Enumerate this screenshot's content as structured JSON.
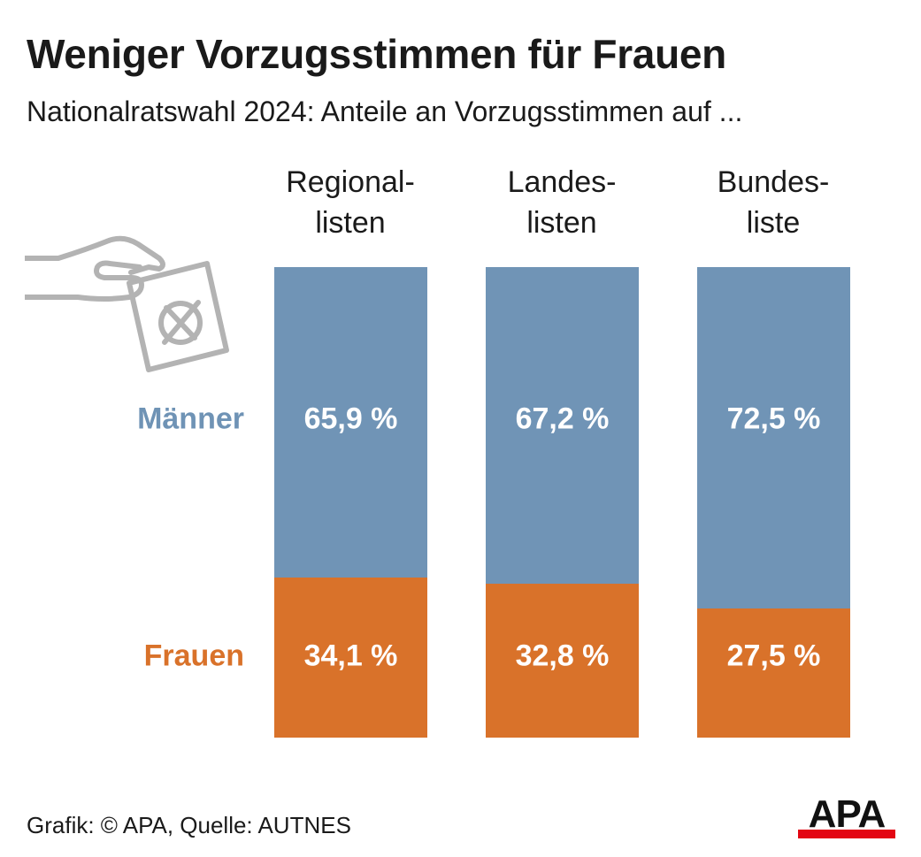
{
  "title": "Weniger Vorzugsstimmen für Frauen",
  "subtitle": "Nationalratswahl 2024: Anteile an Vorzugsstimmen auf ...",
  "columns": [
    {
      "line1": "Regional-",
      "line2": "listen"
    },
    {
      "line1": "Landes-",
      "line2": "listen"
    },
    {
      "line1": "Bundes-",
      "line2": "liste"
    }
  ],
  "row_labels": {
    "men": "Männer",
    "women": "Frauen"
  },
  "footer": "Grafik: © APA, Quelle: AUTNES",
  "logo": {
    "text": "APA"
  },
  "colors": {
    "men": "#7094b6",
    "women": "#d9722a",
    "men_label": "#6f93b5",
    "women_label": "#d9722a",
    "logo_bar": "#e30613",
    "icon": "#b3b3b3"
  },
  "chart_data": {
    "type": "bar",
    "stacked": true,
    "normalized": true,
    "title": "Weniger Vorzugsstimmen für Frauen",
    "subtitle": "Nationalratswahl 2024: Anteile an Vorzugsstimmen auf ...",
    "categories": [
      "Regionallisten",
      "Landeslisten",
      "Bundesliste"
    ],
    "series": [
      {
        "name": "Männer",
        "values": [
          65.9,
          67.2,
          72.5
        ],
        "labels": [
          "65,9 %",
          "67,2 %",
          "72,5 %"
        ]
      },
      {
        "name": "Frauen",
        "values": [
          34.1,
          32.8,
          27.5
        ],
        "labels": [
          "34,1 %",
          "32,8 %",
          "27,5 %"
        ]
      }
    ],
    "ylim": [
      0,
      100
    ],
    "unit": "%"
  }
}
